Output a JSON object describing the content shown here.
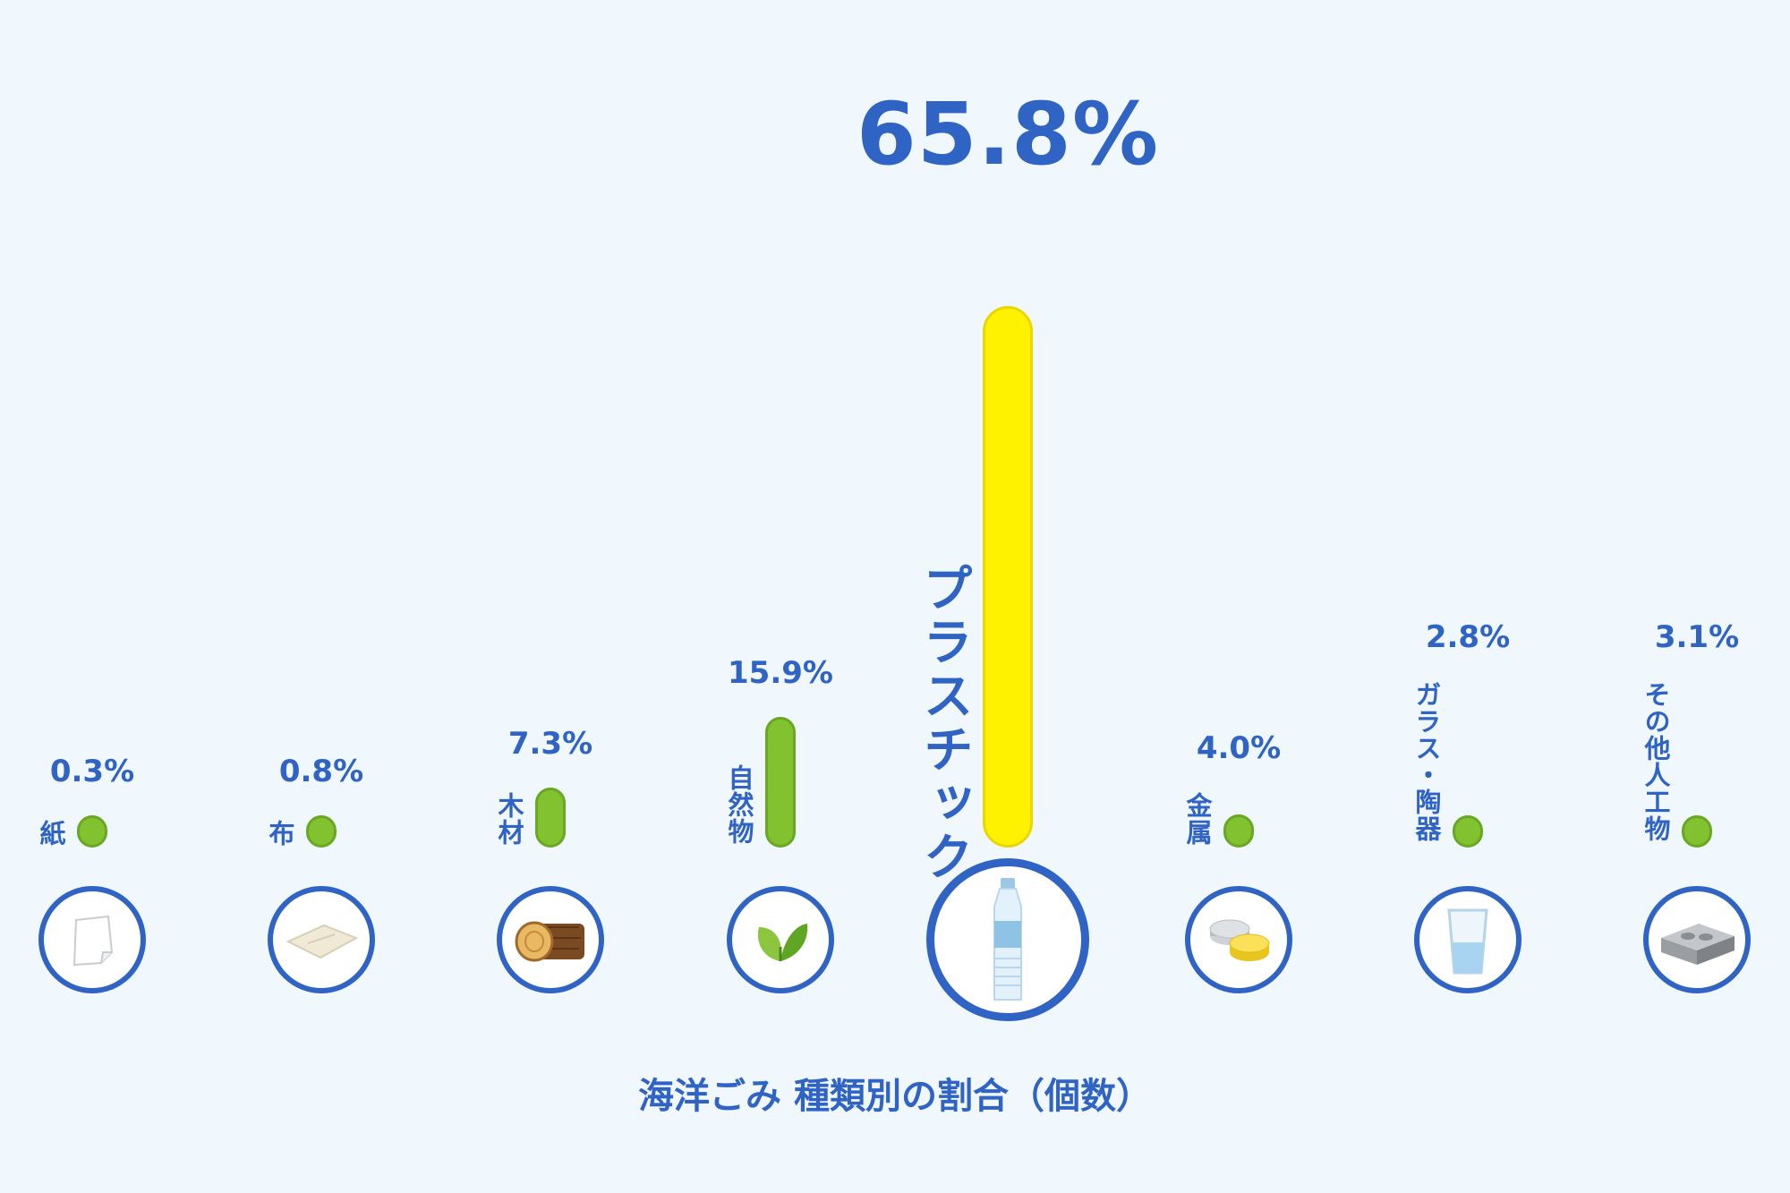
{
  "chart_data": {
    "type": "bar",
    "title": "海洋ごみ 種類別の割合（個数）",
    "unit": "%",
    "categories": [
      "紙",
      "布",
      "木材",
      "自然物",
      "プラスチック",
      "金属",
      "ガラス・陶器",
      "その他人工物"
    ],
    "values": [
      0.3,
      0.8,
      7.3,
      15.9,
      65.8,
      4.0,
      2.8,
      3.1
    ],
    "value_labels": [
      "0.3%",
      "0.8%",
      "7.3%",
      "15.9%",
      "65.8%",
      "4.0%",
      "2.8%",
      "3.1%"
    ],
    "icons": [
      "paper-icon",
      "cloth-icon",
      "log-icon",
      "leaf-icon",
      "bottle-icon",
      "coins-icon",
      "glass-cup-icon",
      "concrete-block-icon"
    ],
    "highlight_index": 4,
    "colors": {
      "bar": "#82c12f",
      "highlight_bar": "#fff200",
      "text": "#2f63c4",
      "background": "#f0f7fd"
    },
    "grid": false,
    "legend": "none"
  }
}
